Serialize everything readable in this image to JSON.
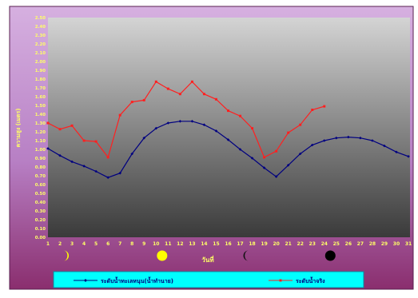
{
  "chart_data": {
    "type": "line",
    "title": "",
    "xlabel": "วันที่",
    "ylabel": "ความสูง (เมตร)",
    "x": [
      1,
      2,
      3,
      4,
      5,
      6,
      7,
      8,
      9,
      10,
      11,
      12,
      13,
      14,
      15,
      16,
      17,
      18,
      19,
      20,
      21,
      22,
      23,
      24,
      25,
      26,
      27,
      28,
      29,
      30,
      31
    ],
    "ylim": [
      0,
      2.5
    ],
    "ytick_step": 0.1,
    "grid": false,
    "legend_position": "bottom",
    "series": [
      {
        "name": "ระดับน้ำทะเลหนุน(น้ำทำนาย)",
        "color": "#000080",
        "marker": "diamond",
        "values": [
          1.01,
          0.93,
          0.86,
          0.81,
          0.75,
          0.68,
          0.73,
          0.95,
          1.13,
          1.24,
          1.3,
          1.32,
          1.32,
          1.28,
          1.21,
          1.11,
          1.0,
          0.9,
          0.79,
          0.69,
          0.82,
          0.95,
          1.05,
          1.1,
          1.13,
          1.14,
          1.13,
          1.1,
          1.04,
          0.97,
          0.92
        ]
      },
      {
        "name": "ระดับน้ำจริง",
        "color": "#ff2020",
        "marker": "square",
        "values": [
          1.3,
          1.23,
          1.27,
          1.1,
          1.09,
          0.91,
          1.39,
          1.54,
          1.56,
          1.77,
          1.69,
          1.63,
          1.77,
          1.63,
          1.57,
          1.44,
          1.38,
          1.24,
          0.91,
          0.98,
          1.19,
          1.28,
          1.45,
          1.49,
          null,
          null,
          null,
          null,
          null,
          null,
          null
        ]
      }
    ]
  },
  "moon_phases": [
    {
      "name": "waxing-crescent-icon",
      "day": 2.5
    },
    {
      "name": "full-moon-icon",
      "day": 10.5
    },
    {
      "name": "waning-crescent-icon",
      "day": 17.5
    },
    {
      "name": "new-moon-icon",
      "day": 24.5
    }
  ],
  "colors": {
    "outer_frame_top": "#d6b0e0",
    "outer_frame_bottom": "#8a2e6e",
    "plot_top": "#d4d4d4",
    "plot_bottom": "#3a3a3a",
    "axis_text": "#ffff66",
    "legend_bg": "#00ffff"
  }
}
